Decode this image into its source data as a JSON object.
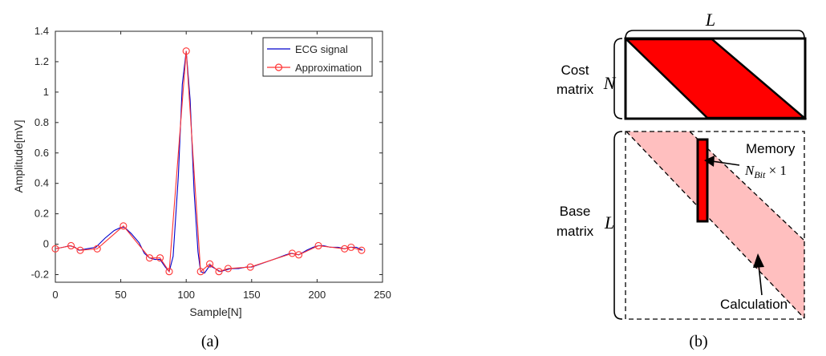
{
  "chart_data": {
    "type": "line",
    "title": "",
    "xlabel": "Sample[N]",
    "ylabel": "Amplitude[mV]",
    "xlim": [
      0,
      250
    ],
    "ylim": [
      -0.25,
      1.4
    ],
    "xticks": [
      0,
      50,
      100,
      150,
      200,
      250
    ],
    "yticks": [
      -0.2,
      0,
      0.2,
      0.4,
      0.6,
      0.8,
      1,
      1.2,
      1.4
    ],
    "xtick_labels": [
      "0",
      "50",
      "100",
      "150",
      "200",
      "250"
    ],
    "ytick_labels": [
      "-0.2",
      "0",
      "0.2",
      "0.4",
      "0.6",
      "0.8",
      "1",
      "1.2",
      "1.4"
    ],
    "legend": "top-right",
    "series": [
      {
        "name": "ECG signal",
        "color": "#0000cc",
        "x": [
          0,
          6,
          11,
          15,
          18,
          24,
          31,
          38,
          45,
          50,
          53,
          58,
          64,
          68,
          72,
          76,
          80,
          84,
          87,
          90,
          94,
          97,
          100,
          103,
          106,
          109,
          111,
          114,
          118,
          122,
          126,
          130,
          134,
          140,
          146,
          150,
          160,
          170,
          176,
          180,
          186,
          192,
          197,
          201,
          205,
          210,
          216,
          221,
          225,
          230,
          235
        ],
        "values": [
          -0.03,
          -0.02,
          -0.01,
          -0.02,
          -0.04,
          -0.03,
          -0.02,
          0.04,
          0.09,
          0.11,
          0.11,
          0.07,
          0.01,
          -0.06,
          -0.09,
          -0.1,
          -0.1,
          -0.15,
          -0.18,
          -0.08,
          0.45,
          1.05,
          1.27,
          0.95,
          0.35,
          -0.05,
          -0.18,
          -0.19,
          -0.14,
          -0.16,
          -0.18,
          -0.17,
          -0.16,
          -0.16,
          -0.15,
          -0.15,
          -0.12,
          -0.09,
          -0.07,
          -0.06,
          -0.07,
          -0.04,
          -0.02,
          -0.01,
          -0.01,
          -0.02,
          -0.02,
          -0.03,
          -0.02,
          -0.02,
          -0.04
        ]
      },
      {
        "name": "Approximation",
        "color": "#ff3333",
        "marker": "circle",
        "x": [
          0,
          12,
          19,
          32,
          52,
          72,
          80,
          87,
          100,
          111,
          118,
          125,
          132,
          149,
          181,
          186,
          201,
          221,
          226,
          234
        ],
        "values": [
          -0.03,
          -0.01,
          -0.04,
          -0.03,
          0.12,
          -0.09,
          -0.09,
          -0.18,
          1.27,
          -0.18,
          -0.13,
          -0.18,
          -0.16,
          -0.15,
          -0.06,
          -0.07,
          -0.01,
          -0.03,
          -0.02,
          -0.04
        ]
      }
    ]
  },
  "captions": {
    "a": "(a)",
    "b": "(b)"
  },
  "diagram": {
    "top_var": "L",
    "cost_label_line1": "Cost",
    "cost_label_line2": "matrix",
    "cost_var": "N",
    "base_label_line1": "Base",
    "base_label_line2": "matrix",
    "base_var": "L",
    "memory_label": "Memory",
    "memory_size": "N",
    "memory_size_sub": "Bit",
    "memory_size_rest": " × 1",
    "calc_label": "Calculation",
    "colors": {
      "band_dark": "#ff0000",
      "band_light": "#ffbfbf",
      "outline": "#000000"
    }
  }
}
